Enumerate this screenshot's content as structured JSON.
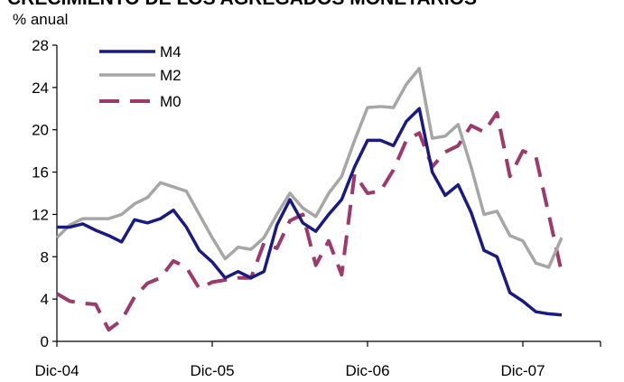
{
  "chart_data": {
    "type": "line",
    "title": "CRECIMIENTO DE LOS AGREGADOS MONETARIOS",
    "y_label": "% anual",
    "x": [
      0,
      1,
      2,
      3,
      4,
      5,
      6,
      7,
      8,
      9,
      10,
      11,
      12,
      13,
      14,
      15,
      16,
      17,
      18,
      19,
      20,
      21,
      22,
      23,
      24,
      25,
      26,
      27,
      28,
      29,
      30,
      31,
      32,
      33,
      34,
      35,
      36,
      37,
      38,
      39
    ],
    "xlim": [
      0,
      42
    ],
    "xticks": [
      {
        "value": 0,
        "label": "Dic-04"
      },
      {
        "value": 12,
        "label": "Dic-05"
      },
      {
        "value": 24,
        "label": "Dic-06"
      },
      {
        "value": 36,
        "label": "Dic-07"
      }
    ],
    "ylim": [
      0,
      28
    ],
    "yticks": [
      0,
      4,
      8,
      12,
      16,
      20,
      24,
      28
    ],
    "grid": false,
    "legend": "top-left",
    "series": [
      {
        "name": "M4",
        "color": "#1a1a80",
        "dash": false,
        "values": [
          10.8,
          10.8,
          11.1,
          10.5,
          10,
          9.4,
          11.5,
          11.2,
          11.6,
          12.4,
          10.8,
          8.6,
          7.5,
          6,
          6.6,
          6,
          6.6,
          11,
          13.4,
          11.2,
          10.4,
          12,
          13.4,
          16.5,
          19,
          19,
          18.5,
          20.8,
          22,
          16,
          13.8,
          14.8,
          12.2,
          8.6,
          8,
          4.6,
          3.8,
          2.8,
          2.6,
          2.5
        ]
      },
      {
        "name": "M2",
        "color": "#a6a6a6",
        "dash": false,
        "values": [
          9.8,
          11,
          11.6,
          11.6,
          11.6,
          12,
          13,
          13.6,
          15,
          14.6,
          14.2,
          12,
          9.8,
          7.8,
          8.9,
          8.7,
          9.8,
          12,
          14,
          12.6,
          11.8,
          14,
          15.6,
          19,
          22.1,
          22.2,
          22.1,
          24.3,
          25.8,
          19.2,
          19.4,
          20.5,
          16.5,
          12,
          12.3,
          10,
          9.5,
          7.4,
          7,
          9.8
        ]
      },
      {
        "name": "M0",
        "color": "#9b3a6c",
        "dash": true,
        "values": [
          4.5,
          3.8,
          3.6,
          3.5,
          1.1,
          2,
          4.2,
          5.5,
          6,
          7.6,
          7,
          5,
          5.6,
          5.8,
          6,
          6,
          9.3,
          8.8,
          11.4,
          12,
          7.2,
          9.5,
          6.3,
          15.8,
          14,
          14.2,
          16.2,
          19,
          19.7,
          16.5,
          17.9,
          18.5,
          20.4,
          19.8,
          21.6,
          15.6,
          18,
          17.5,
          12,
          6.5
        ]
      }
    ]
  }
}
